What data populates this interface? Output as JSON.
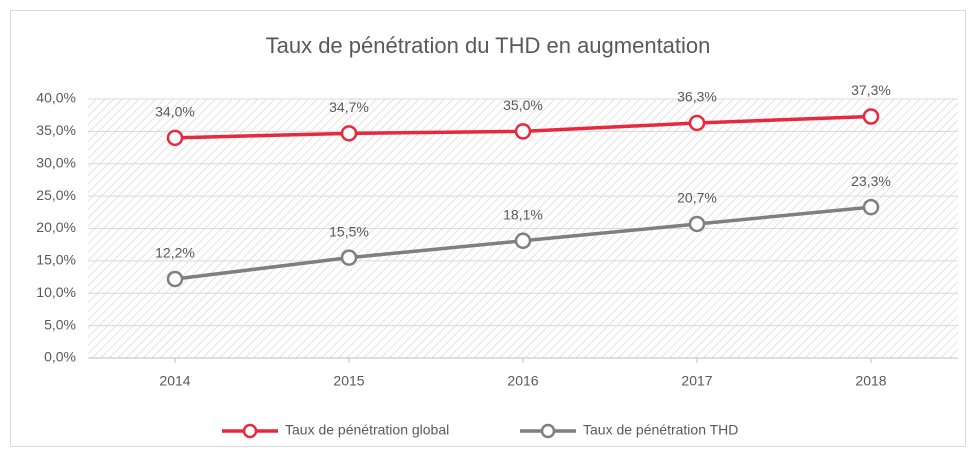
{
  "chart_data": {
    "type": "line",
    "title": "Taux de pénétration du THD en augmentation",
    "categories": [
      "2014",
      "2015",
      "2016",
      "2017",
      "2018"
    ],
    "series": [
      {
        "name": "Taux de pénétration global",
        "color": "#e8283c",
        "values": [
          34.0,
          34.7,
          35.0,
          36.3,
          37.3
        ],
        "value_labels": [
          "34,0%",
          "34,7%",
          "35,0%",
          "36,3%",
          "37,3%"
        ]
      },
      {
        "name": "Taux de pénétration THD",
        "color": "#7f7f7f",
        "values": [
          12.2,
          15.5,
          18.1,
          20.7,
          23.3
        ],
        "value_labels": [
          "12,2%",
          "15,5%",
          "18,1%",
          "20,7%",
          "23,3%"
        ]
      }
    ],
    "ylim": [
      0,
      40
    ],
    "yticks": [
      {
        "value": 0,
        "label": "0,0%"
      },
      {
        "value": 5,
        "label": "5,0%"
      },
      {
        "value": 10,
        "label": "10,0%"
      },
      {
        "value": 15,
        "label": "15,0%"
      },
      {
        "value": 20,
        "label": "20,0%"
      },
      {
        "value": 25,
        "label": "25,0%"
      },
      {
        "value": 30,
        "label": "30,0%"
      },
      {
        "value": 35,
        "label": "35,0%"
      },
      {
        "value": 40,
        "label": "40,0%"
      }
    ],
    "grid": true,
    "legend": "bottom"
  }
}
